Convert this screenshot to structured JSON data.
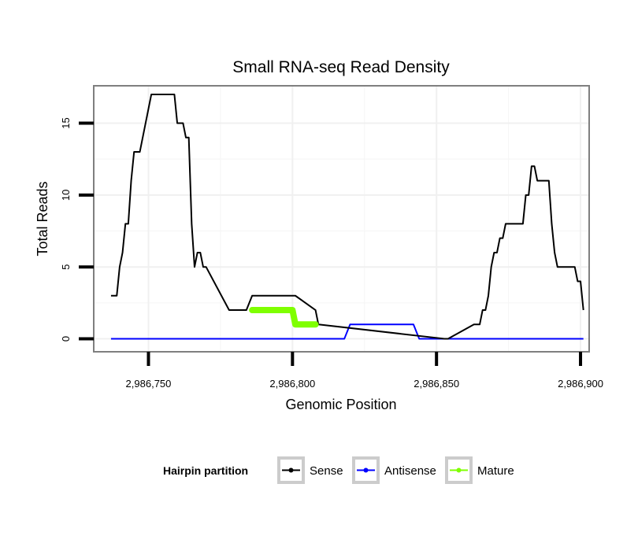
{
  "chart_data": {
    "type": "line",
    "title": "Small RNA-seq Read Density",
    "xlabel": "Genomic Position",
    "ylabel": "Total Reads",
    "xlim": [
      2986731,
      2986903
    ],
    "ylim": [
      -0.9,
      17.6
    ],
    "x_ticks": [
      2986750,
      2986800,
      2986850,
      2986900
    ],
    "x_tick_labels": [
      "2,986,750",
      "2,986,800",
      "2,986,850",
      "2,986,900"
    ],
    "y_ticks": [
      0,
      5,
      10,
      15
    ],
    "y_tick_labels": [
      "0",
      "5",
      "10",
      "15"
    ],
    "grid": true,
    "legend": {
      "title": "Hairpin partition",
      "position": "bottom",
      "entries": [
        "Sense",
        "Antisense",
        "Mature"
      ]
    },
    "colors": {
      "Sense": "#000000",
      "Antisense": "#0000ff",
      "Mature": "#7fff00"
    },
    "series": [
      {
        "name": "Sense",
        "x": [
          2986737,
          2986738,
          2986739,
          2986740,
          2986741,
          2986742,
          2986743,
          2986744,
          2986745,
          2986746,
          2986747,
          2986751,
          2986752,
          2986753,
          2986759,
          2986760,
          2986762,
          2986763,
          2986764,
          2986765,
          2986766,
          2986767,
          2986768,
          2986769,
          2986770,
          2986778,
          2986780,
          2986784,
          2986786,
          2986801,
          2986808,
          2986809,
          2986853,
          2986854,
          2986863,
          2986864,
          2986865,
          2986866,
          2986867,
          2986868,
          2986869,
          2986870,
          2986871,
          2986872,
          2986873,
          2986874,
          2986879,
          2986880,
          2986881,
          2986882,
          2986883,
          2986884,
          2986885,
          2986889,
          2986890,
          2986891,
          2986892,
          2986898,
          2986899,
          2986900,
          2986901
        ],
        "y": [
          3,
          3,
          3,
          5,
          6,
          8,
          8,
          11,
          13,
          13,
          13,
          17,
          17,
          17,
          17,
          15,
          15,
          14,
          14,
          8,
          5,
          6,
          6,
          5,
          5,
          2,
          2,
          2,
          3,
          3,
          2,
          1,
          0,
          0,
          1,
          1,
          1,
          2,
          2,
          3,
          5,
          6,
          6,
          7,
          7,
          8,
          8,
          8,
          10,
          10,
          12,
          12,
          11,
          11,
          8,
          6,
          5,
          5,
          4,
          4,
          2
        ]
      },
      {
        "name": "Antisense",
        "x": [
          2986737,
          2986818,
          2986820,
          2986842,
          2986844,
          2986901
        ],
        "y": [
          0,
          0,
          1,
          1,
          0,
          0
        ]
      },
      {
        "name": "Mature",
        "x": [
          2986786,
          2986800,
          2986801,
          2986808
        ],
        "y": [
          2,
          2,
          1,
          1
        ]
      }
    ]
  }
}
